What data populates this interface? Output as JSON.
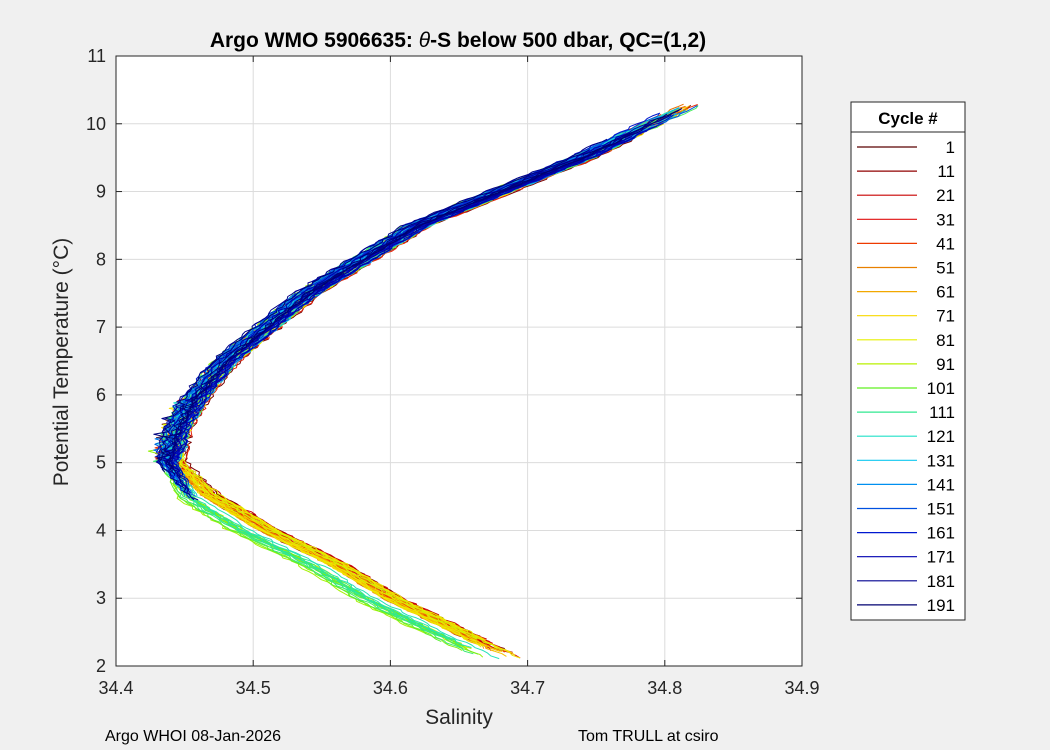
{
  "chart_data": {
    "type": "line",
    "title_prefix": "Argo WMO 5906635: ",
    "title_theta": "θ",
    "title_suffix": "-S below 500 dbar,  QC=(1,2)",
    "xlabel": "Salinity",
    "ylabel": "Potential Temperature (°C)",
    "xlim": [
      34.4,
      34.9
    ],
    "ylim": [
      2,
      11
    ],
    "xticks": [
      "34.4",
      "34.5",
      "34.6",
      "34.7",
      "34.8",
      "34.9"
    ],
    "yticks": [
      "2",
      "3",
      "4",
      "5",
      "6",
      "7",
      "8",
      "9",
      "10",
      "11"
    ],
    "grid": true,
    "legend_position": "right",
    "legend": {
      "title": "Cycle #",
      "cycles": [
        "1",
        "11",
        "21",
        "31",
        "41",
        "51",
        "61",
        "71",
        "81",
        "91",
        "101",
        "111",
        "121",
        "131",
        "141",
        "151",
        "161",
        "171",
        "181",
        "191"
      ]
    },
    "colormap": "jet",
    "profile_shape": {
      "note": "Each cycle is a θ-S profile; approximate envelope read from the plot",
      "theta": [
        10.3,
        10.0,
        9.5,
        9.0,
        8.5,
        8.0,
        7.5,
        7.0,
        6.5,
        6.0,
        5.5,
        5.0,
        4.5,
        4.0,
        3.5,
        3.0,
        2.5,
        2.1
      ],
      "salinity": [
        34.82,
        34.79,
        34.74,
        34.68,
        34.62,
        34.58,
        34.54,
        34.51,
        34.48,
        34.46,
        34.445,
        34.44,
        34.46,
        34.5,
        34.55,
        34.59,
        34.64,
        34.68
      ]
    },
    "series": [
      {
        "name": "1",
        "color": "#5a0000"
      },
      {
        "name": "11",
        "color": "#900000"
      },
      {
        "name": "21",
        "color": "#c80000"
      },
      {
        "name": "31",
        "color": "#e01010"
      },
      {
        "name": "41",
        "color": "#ee3a00"
      },
      {
        "name": "51",
        "color": "#e88000"
      },
      {
        "name": "61",
        "color": "#f2a800"
      },
      {
        "name": "71",
        "color": "#f8d800"
      },
      {
        "name": "81",
        "color": "#e6f000"
      },
      {
        "name": "91",
        "color": "#b8f000"
      },
      {
        "name": "101",
        "color": "#60f020"
      },
      {
        "name": "111",
        "color": "#30e890"
      },
      {
        "name": "121",
        "color": "#20e0c8"
      },
      {
        "name": "131",
        "color": "#10c8f0"
      },
      {
        "name": "141",
        "color": "#0090f0"
      },
      {
        "name": "151",
        "color": "#0050e0"
      },
      {
        "name": "161",
        "color": "#0018d0"
      },
      {
        "name": "171",
        "color": "#0000b0"
      },
      {
        "name": "181",
        "color": "#000090"
      },
      {
        "name": "191",
        "color": "#000070"
      }
    ]
  },
  "footer": {
    "left": "Argo WHOI 08-Jan-2026",
    "right": "Tom TRULL at csiro"
  }
}
